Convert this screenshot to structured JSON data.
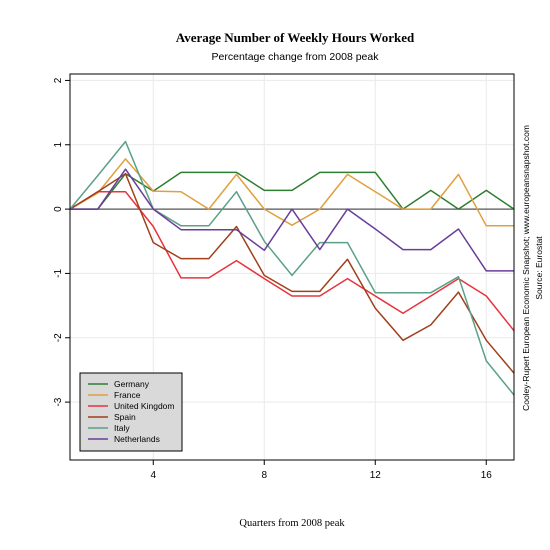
{
  "chart_data": {
    "type": "line",
    "title": "Average Number of Weekly Hours Worked",
    "subtitle": "Percentage change from 2008 peak",
    "xlabel": "Quarters from 2008 peak",
    "ylabel": "",
    "xlim": [
      1,
      17
    ],
    "ylim": [
      -3.9,
      2.1
    ],
    "x_ticks": [
      4,
      8,
      12,
      16
    ],
    "y_ticks": [
      -3,
      -2,
      -1,
      0,
      1,
      2
    ],
    "grid": true,
    "zero_line": true,
    "legend_position": "bottom-left",
    "x": [
      1,
      2,
      3,
      4,
      5,
      6,
      7,
      8,
      9,
      10,
      11,
      12,
      13,
      14,
      15,
      16,
      17
    ],
    "series": [
      {
        "name": "Germany",
        "color": "#2e7d32",
        "values": [
          0,
          0,
          0.55,
          0.28,
          0.57,
          0.57,
          0.57,
          0.29,
          0.29,
          0.57,
          0.57,
          0.57,
          0,
          0.29,
          0,
          0.29,
          0
        ]
      },
      {
        "name": "France",
        "color": "#e0a040",
        "values": [
          0,
          0.25,
          0.78,
          0.28,
          0.27,
          0,
          0.54,
          0,
          -0.25,
          0,
          0.54,
          0.27,
          0,
          0,
          0.54,
          -0.26,
          -0.26
        ]
      },
      {
        "name": "United Kingdom",
        "color": "#e8333d",
        "values": [
          0,
          0.27,
          0.27,
          -0.27,
          -1.07,
          -1.07,
          -0.8,
          -1.08,
          -1.35,
          -1.35,
          -1.08,
          -1.35,
          -1.62,
          -1.35,
          -1.08,
          -1.35,
          -1.89
        ]
      },
      {
        "name": "Spain",
        "color": "#a0401c",
        "values": [
          0,
          0.27,
          0.55,
          -0.52,
          -0.77,
          -0.77,
          -0.27,
          -1.03,
          -1.28,
          -1.28,
          -0.78,
          -1.54,
          -2.04,
          -1.8,
          -1.29,
          -2.04,
          -2.55
        ]
      },
      {
        "name": "Italy",
        "color": "#5ba087",
        "values": [
          0,
          0.52,
          1.05,
          0,
          -0.26,
          -0.26,
          0.27,
          -0.5,
          -1.03,
          -0.52,
          -0.52,
          -1.3,
          -1.3,
          -1.3,
          -1.05,
          -2.36,
          -2.89
        ]
      },
      {
        "name": "Netherlands",
        "color": "#6a3d9a",
        "values": [
          0,
          0,
          0.62,
          0,
          -0.32,
          -0.32,
          -0.32,
          -0.64,
          0,
          -0.63,
          0,
          -0.31,
          -0.63,
          -0.63,
          -0.31,
          -0.96,
          -0.96
        ]
      }
    ]
  },
  "side_note": {
    "line1": "Cooley-Rupert European Economic Snapshot; www.europeansnapshot.com",
    "line2": "Source: Eurostat"
  }
}
